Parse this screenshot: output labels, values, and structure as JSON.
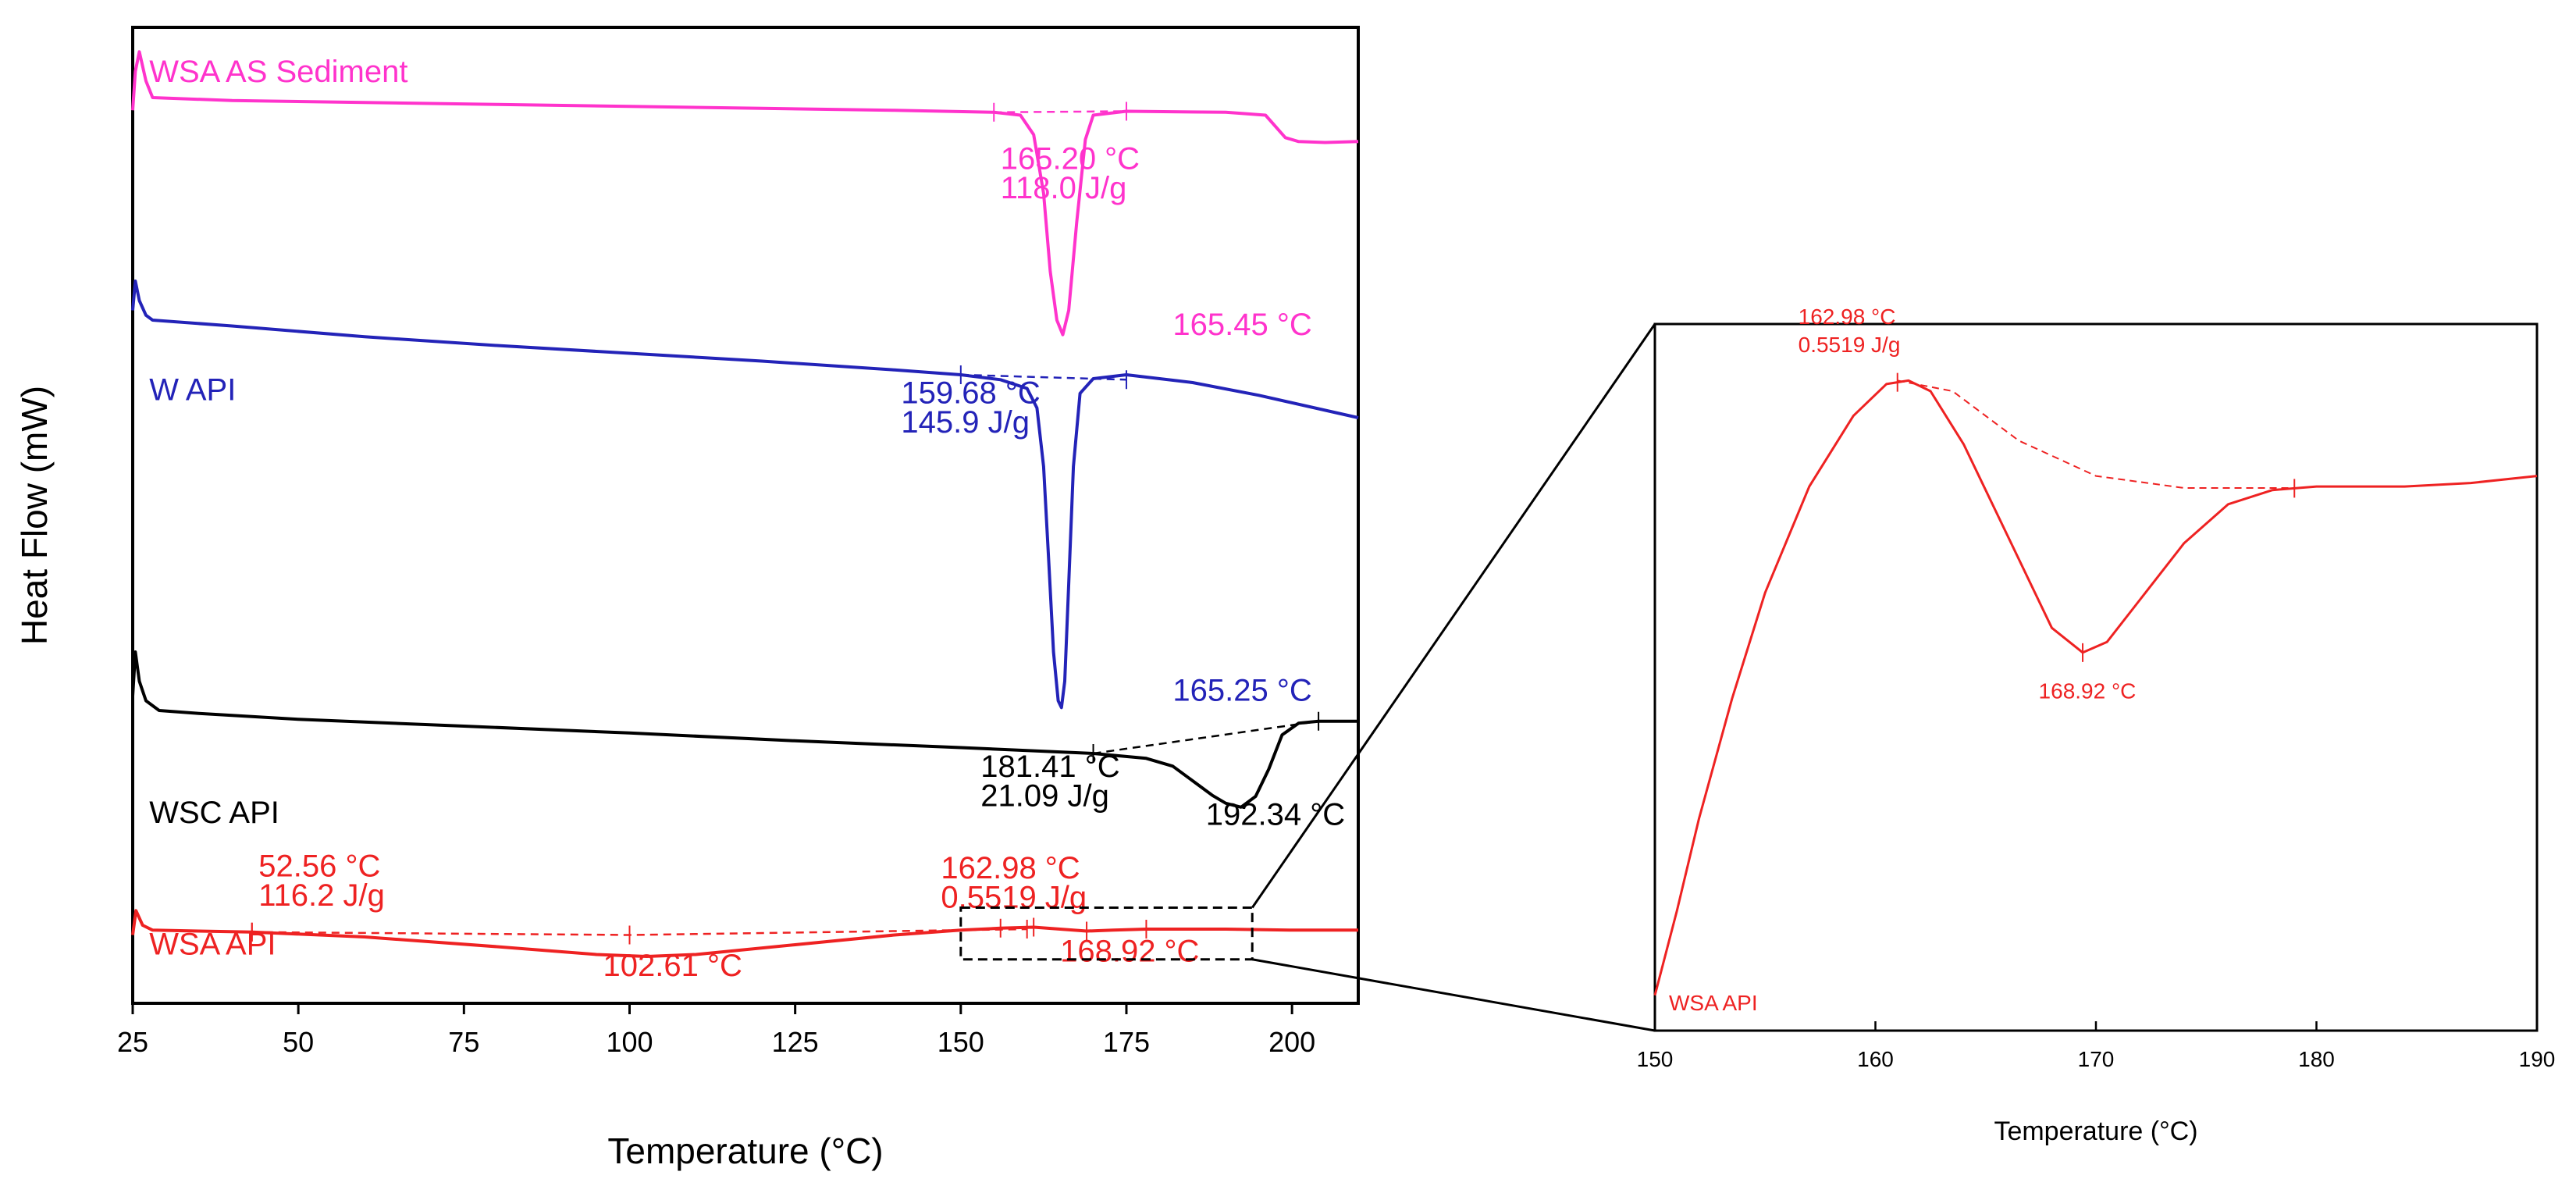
{
  "chart_data": [
    {
      "type": "line",
      "panel": "main",
      "xlabel": "Temperature (°C)",
      "ylabel": "Heat Flow (mW)",
      "xlim": [
        25,
        210
      ],
      "x_ticks": [
        "25",
        "50",
        "75",
        "100",
        "125",
        "150",
        "175",
        "200"
      ],
      "y_ticks": [],
      "series": [
        {
          "name": "WSA AS Sediment",
          "color": "#ff33cc",
          "label": "WSA AS Sediment",
          "points": [
            [
              25.0,
              91.5
            ],
            [
              25.4,
              95.5
            ],
            [
              26.0,
              97.5
            ],
            [
              27.0,
              94.5
            ],
            [
              28.0,
              92.8
            ],
            [
              40.0,
              92.5
            ],
            [
              60.0,
              92.3
            ],
            [
              80.0,
              92.1
            ],
            [
              100.0,
              91.9
            ],
            [
              120.0,
              91.7
            ],
            [
              140.0,
              91.5
            ],
            [
              155.0,
              91.3
            ],
            [
              159.0,
              91.0
            ],
            [
              161.0,
              89.0
            ],
            [
              162.5,
              83.0
            ],
            [
              163.5,
              75.0
            ],
            [
              164.5,
              70.0
            ],
            [
              165.4,
              68.5
            ],
            [
              166.3,
              71.0
            ],
            [
              167.5,
              80.0
            ],
            [
              168.8,
              88.5
            ],
            [
              170.0,
              91.0
            ],
            [
              175.0,
              91.4
            ],
            [
              190.0,
              91.3
            ],
            [
              196.0,
              91.0
            ],
            [
              199.0,
              88.7
            ],
            [
              201.0,
              88.3
            ],
            [
              205.0,
              88.2
            ],
            [
              210.0,
              88.3
            ]
          ],
          "baseline": [
            [
              155.0,
              91.3
            ],
            [
              175.0,
              91.4
            ]
          ],
          "annotations": [
            {
              "text": "165.20 °C",
              "x": 156,
              "y": 85.5
            },
            {
              "text": "118.0 J/g",
              "x": 156,
              "y": 82.5
            },
            {
              "text": "165.45 °C",
              "x": 182,
              "y": 68.5
            }
          ]
        },
        {
          "name": "W API",
          "color": "#2323b8",
          "label": "W API",
          "points": [
            [
              25.0,
              71.0
            ],
            [
              25.4,
              74.0
            ],
            [
              26.0,
              72.0
            ],
            [
              27.0,
              70.5
            ],
            [
              28.0,
              70.0
            ],
            [
              40.0,
              69.4
            ],
            [
              60.0,
              68.3
            ],
            [
              80.0,
              67.4
            ],
            [
              100.0,
              66.6
            ],
            [
              120.0,
              65.8
            ],
            [
              140.0,
              64.9
            ],
            [
              150.0,
              64.4
            ],
            [
              156.0,
              63.9
            ],
            [
              160.0,
              63.0
            ],
            [
              161.5,
              61.0
            ],
            [
              162.5,
              55.0
            ],
            [
              163.3,
              45.0
            ],
            [
              164.0,
              36.0
            ],
            [
              164.7,
              31.0
            ],
            [
              165.2,
              30.3
            ],
            [
              165.7,
              33.0
            ],
            [
              166.3,
              43.0
            ],
            [
              167.0,
              55.0
            ],
            [
              168.0,
              62.5
            ],
            [
              170.0,
              64.0
            ],
            [
              175.0,
              64.4
            ],
            [
              185.0,
              63.6
            ],
            [
              195.0,
              62.3
            ],
            [
              210.0,
              60.0
            ]
          ],
          "baseline": [
            [
              150.0,
              64.4
            ],
            [
              175.0,
              63.9
            ]
          ],
          "annotations": [
            {
              "text": "159.68 °C",
              "x": 141,
              "y": 61.5
            },
            {
              "text": "145.9 J/g",
              "x": 141,
              "y": 58.5
            },
            {
              "text": "165.25 °C",
              "x": 182,
              "y": 31.0
            }
          ]
        },
        {
          "name": "WSC API",
          "color": "#000000",
          "label": "WSC API",
          "points": [
            [
              25.0,
              31.5
            ],
            [
              25.4,
              36.0
            ],
            [
              26.0,
              33.0
            ],
            [
              27.0,
              31.0
            ],
            [
              29.0,
              30.0
            ],
            [
              35.0,
              29.7
            ],
            [
              50.0,
              29.1
            ],
            [
              75.0,
              28.4
            ],
            [
              100.0,
              27.7
            ],
            [
              125.0,
              26.9
            ],
            [
              150.0,
              26.2
            ],
            [
              170.0,
              25.6
            ],
            [
              178.0,
              25.1
            ],
            [
              182.0,
              24.3
            ],
            [
              185.0,
              22.8
            ],
            [
              188.0,
              21.3
            ],
            [
              190.0,
              20.5
            ],
            [
              192.3,
              20.1
            ],
            [
              194.5,
              21.2
            ],
            [
              196.5,
              24.0
            ],
            [
              198.5,
              27.5
            ],
            [
              201.0,
              28.7
            ],
            [
              204.0,
              28.9
            ],
            [
              210.0,
              28.9
            ]
          ],
          "baseline": [
            [
              170.0,
              25.6
            ],
            [
              204.0,
              28.9
            ]
          ],
          "annotations": [
            {
              "text": "181.41 °C",
              "x": 153,
              "y": 23.2
            },
            {
              "text": "21.09 J/g",
              "x": 153,
              "y": 20.2
            },
            {
              "text": "192.34 °C",
              "x": 187,
              "y": 18.3
            }
          ]
        },
        {
          "name": "WSA API",
          "color": "#ee2222",
          "label": "WSA API",
          "points": [
            [
              25.0,
              7.0
            ],
            [
              25.5,
              9.5
            ],
            [
              26.5,
              8.0
            ],
            [
              28.0,
              7.5
            ],
            [
              35.0,
              7.4
            ],
            [
              43.0,
              7.3
            ],
            [
              60.0,
              6.8
            ],
            [
              80.0,
              5.8
            ],
            [
              95.0,
              5.0
            ],
            [
              102.6,
              4.8
            ],
            [
              110.0,
              5.0
            ],
            [
              125.0,
              6.0
            ],
            [
              140.0,
              7.0
            ],
            [
              150.0,
              7.5
            ],
            [
              156.0,
              7.7
            ],
            [
              161.0,
              7.8
            ],
            [
              165.0,
              7.6
            ],
            [
              169.0,
              7.4
            ],
            [
              173.0,
              7.5
            ],
            [
              178.0,
              7.6
            ],
            [
              190.0,
              7.6
            ],
            [
              200.0,
              7.5
            ],
            [
              210.0,
              7.5
            ]
          ],
          "baseline": [
            [
              43.0,
              7.3
            ],
            [
              100.0,
              7.0
            ],
            [
              160.0,
              7.6
            ]
          ],
          "markers": [
            43,
            156,
            161,
            169,
            178
          ],
          "annotations": [
            {
              "text": "52.56 °C",
              "x": 44,
              "y": 13.0
            },
            {
              "text": "116.2 J/g",
              "x": 44,
              "y": 10.0
            },
            {
              "text": "162.98 °C",
              "x": 147,
              "y": 12.8
            },
            {
              "text": "0.5519 J/g",
              "x": 147,
              "y": 9.8
            },
            {
              "text": "102.61 °C",
              "x": 96,
              "y": 2.8
            },
            {
              "text": "168.92 °C",
              "x": 165,
              "y": 4.3
            }
          ]
        }
      ],
      "zoom_box": {
        "x": [
          150,
          194
        ],
        "y": [
          4.5,
          9.8
        ]
      }
    },
    {
      "type": "line",
      "panel": "zoom",
      "xlabel": "Temperature (°C)",
      "xlim": [
        150,
        190
      ],
      "ylim": [
        0,
        100
      ],
      "x_ticks": [
        "150",
        "160",
        "170",
        "180",
        "190"
      ],
      "series": [
        {
          "name": "WSA API",
          "color": "#ee2222",
          "label": "WSA API",
          "points": [
            [
              150.0,
              5.0
            ],
            [
              151.0,
              17.0
            ],
            [
              152.0,
              30.0
            ],
            [
              153.5,
              47.0
            ],
            [
              155.0,
              62.0
            ],
            [
              157.0,
              77.0
            ],
            [
              159.0,
              87.0
            ],
            [
              160.5,
              91.5
            ],
            [
              161.5,
              92.0
            ],
            [
              162.5,
              90.5
            ],
            [
              164.0,
              83.0
            ],
            [
              166.0,
              70.0
            ],
            [
              168.0,
              57.0
            ],
            [
              169.4,
              53.5
            ],
            [
              170.5,
              55.0
            ],
            [
              172.0,
              61.0
            ],
            [
              174.0,
              69.0
            ],
            [
              176.0,
              74.5
            ],
            [
              178.0,
              76.5
            ],
            [
              180.0,
              77.0
            ],
            [
              184.0,
              77.0
            ],
            [
              187.0,
              77.5
            ],
            [
              190.0,
              78.5
            ]
          ],
          "baseline": [
            [
              161.0,
              92.0
            ],
            [
              163.5,
              90.5
            ],
            [
              166.5,
              83.5
            ],
            [
              170.0,
              78.5
            ],
            [
              174.0,
              76.8
            ],
            [
              179.0,
              76.8
            ]
          ],
          "markers": [
            161.0,
            169.4,
            179.0
          ],
          "annotations": [
            {
              "text": "162.98 °C",
              "x": 156.5,
              "y": 100.0
            },
            {
              "text": "0.5519 J/g",
              "x": 156.5,
              "y": 96.0
            },
            {
              "text": "168.92 °C",
              "x": 167.4,
              "y": 47.0
            }
          ]
        }
      ]
    }
  ]
}
